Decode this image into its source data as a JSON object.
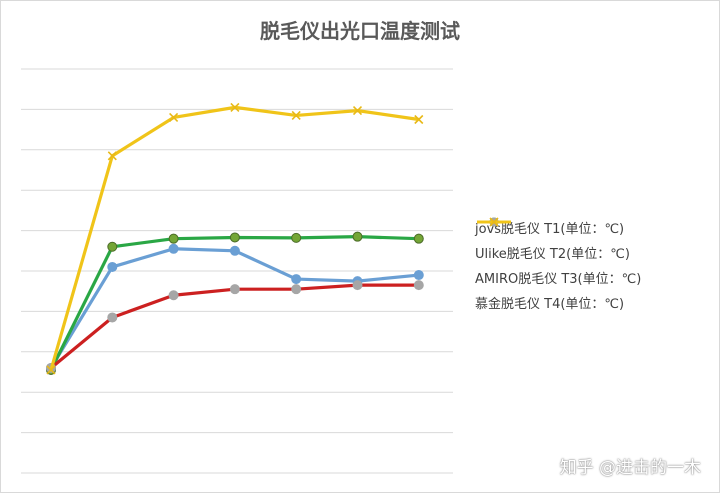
{
  "chart_data": {
    "type": "line",
    "title": "脱毛仪出光口温度测试",
    "xlabel": "",
    "ylabel": "",
    "x": [
      1,
      2,
      3,
      4,
      5,
      6,
      7
    ],
    "ylim": [
      0,
      10
    ],
    "grid": true,
    "legend_position": "right",
    "series": [
      {
        "name": "jovs脱毛仪 T1(单位：℃)",
        "values": [
          2.6,
          5.1,
          5.55,
          5.5,
          4.8,
          4.75,
          4.9
        ],
        "color": "#6a9fd4",
        "marker": "circle",
        "marker_color": "#6a9fd4"
      },
      {
        "name": "Ulike脱毛仪 T2(单位：℃)",
        "values": [
          2.55,
          5.6,
          5.8,
          5.83,
          5.82,
          5.85,
          5.8
        ],
        "color": "#2aa745",
        "marker": "circle",
        "marker_color": "#74a636"
      },
      {
        "name": "AMIRO脱毛仪 T3(单位：℃)",
        "values": [
          2.6,
          3.85,
          4.4,
          4.55,
          4.55,
          4.65,
          4.65
        ],
        "color": "#cc2020",
        "marker": "circle",
        "marker_color": "#a6a6a6"
      },
      {
        "name": "慕金脱毛仪 T4(单位：℃)",
        "values": [
          2.55,
          7.85,
          8.8,
          9.05,
          8.85,
          8.97,
          8.75
        ],
        "color": "#f0c419",
        "marker": "x",
        "marker_color": "#e8b917"
      }
    ]
  },
  "watermark": "知乎 @进击的一木"
}
